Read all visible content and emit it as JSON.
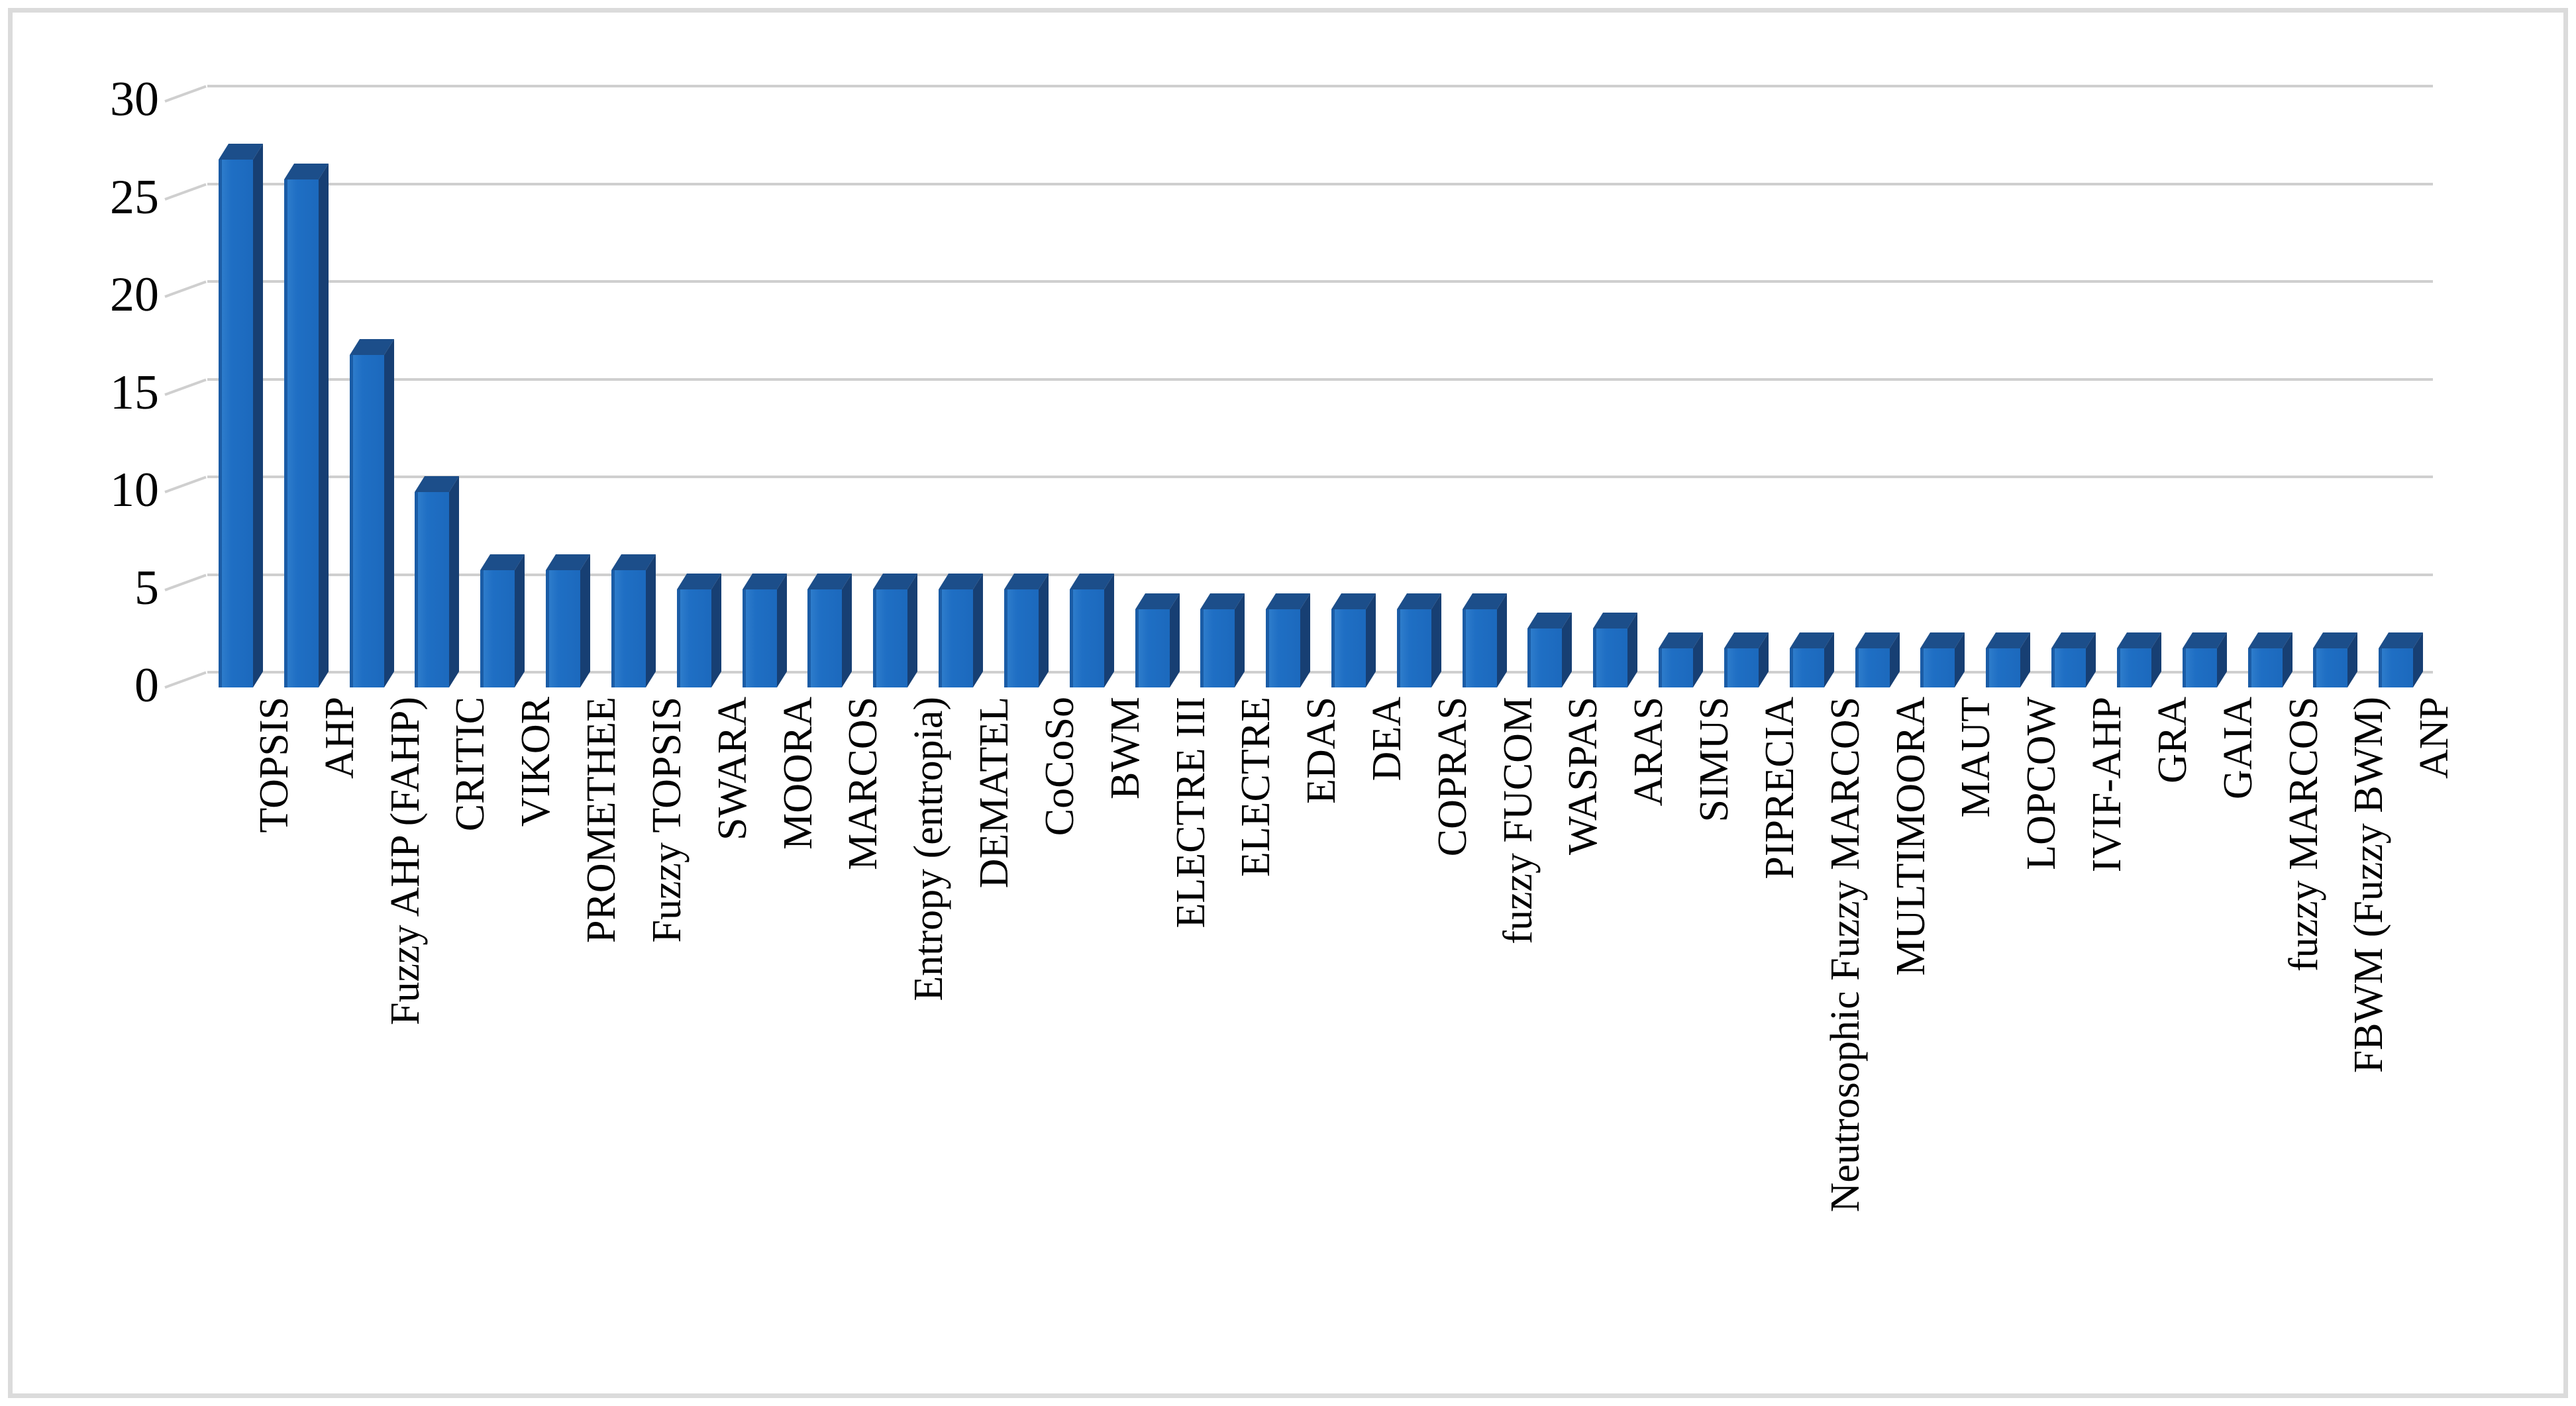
{
  "figure": {
    "background": "#FFFFFF",
    "border_color": "#DBDBDB"
  },
  "chart_data": {
    "type": "bar",
    "style": "3d",
    "title": "",
    "xlabel": "",
    "ylabel": "",
    "categories": [
      "TOPSIS",
      "AHP",
      "Fuzzy AHP (FAHP)",
      "CRITIC",
      "VIKOR",
      "PROMETHEE",
      "Fuzzy TOPSIS",
      "SWARA",
      "MOORA",
      "MARCOS",
      "Entropy (entropia)",
      "DEMATEL",
      "CoCoSo",
      "BWM",
      "ELECTRE III",
      "ELECTRE",
      "EDAS",
      "DEA",
      "COPRAS",
      "fuzzy FUCOM",
      "WASPAS",
      "ARAS",
      "SIMUS",
      "PIPRECIA",
      "Neutrosophic Fuzzy MARCOS",
      "MULTIMOORA",
      "MAUT",
      "LOPCOW",
      "IVIF-AHP",
      "GRA",
      "GAIA",
      "fuzzy MARCOS",
      "FBWM (Fuzzy BWM)",
      "ANP"
    ],
    "values": [
      27,
      26,
      17,
      10,
      6,
      6,
      6,
      5,
      5,
      5,
      5,
      5,
      5,
      5,
      4,
      4,
      4,
      4,
      4,
      4,
      3,
      3,
      2,
      2,
      2,
      2,
      2,
      2,
      2,
      2,
      2,
      2,
      2,
      2
    ],
    "ylim": [
      0,
      30
    ],
    "yticks": [
      0,
      5,
      10,
      15,
      20,
      25,
      30
    ],
    "grid": true,
    "legend_position": "none",
    "colors": {
      "bar_front": "#1F6FC4",
      "bar_top": "#1C4E8A",
      "bar_side": "#173F73",
      "bar_left_edge": "#1A5CA6",
      "gridline": "#CFCFCF",
      "tick_label": "#000000"
    }
  }
}
